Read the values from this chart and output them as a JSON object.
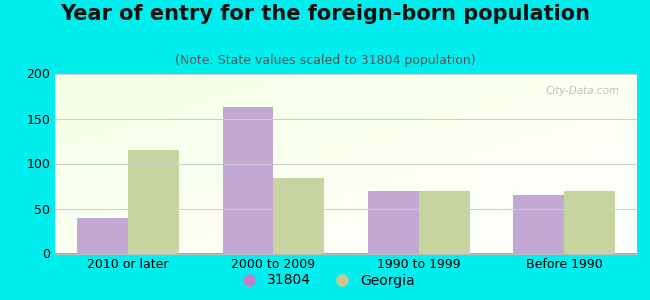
{
  "title": "Year of entry for the foreign-born population",
  "subtitle": "(Note: State values scaled to 31804 population)",
  "categories": [
    "2010 or later",
    "2000 to 2009",
    "1990 to 1999",
    "Before 1990"
  ],
  "series_31804": [
    40,
    163,
    70,
    65
  ],
  "series_georgia": [
    115,
    84,
    69,
    70
  ],
  "bar_color_31804": "#c4a8d4",
  "bar_color_georgia": "#c8d4a0",
  "legend_labels": [
    "31804",
    "Georgia"
  ],
  "legend_color_31804": "#c080c8",
  "legend_color_georgia": "#c8c890",
  "ylim": [
    0,
    200
  ],
  "yticks": [
    0,
    50,
    100,
    150,
    200
  ],
  "bar_width": 0.35,
  "outer_background": "#00eeee",
  "title_fontsize": 15,
  "subtitle_fontsize": 9,
  "tick_fontsize": 9,
  "legend_fontsize": 10,
  "watermark": "City-Data.com"
}
